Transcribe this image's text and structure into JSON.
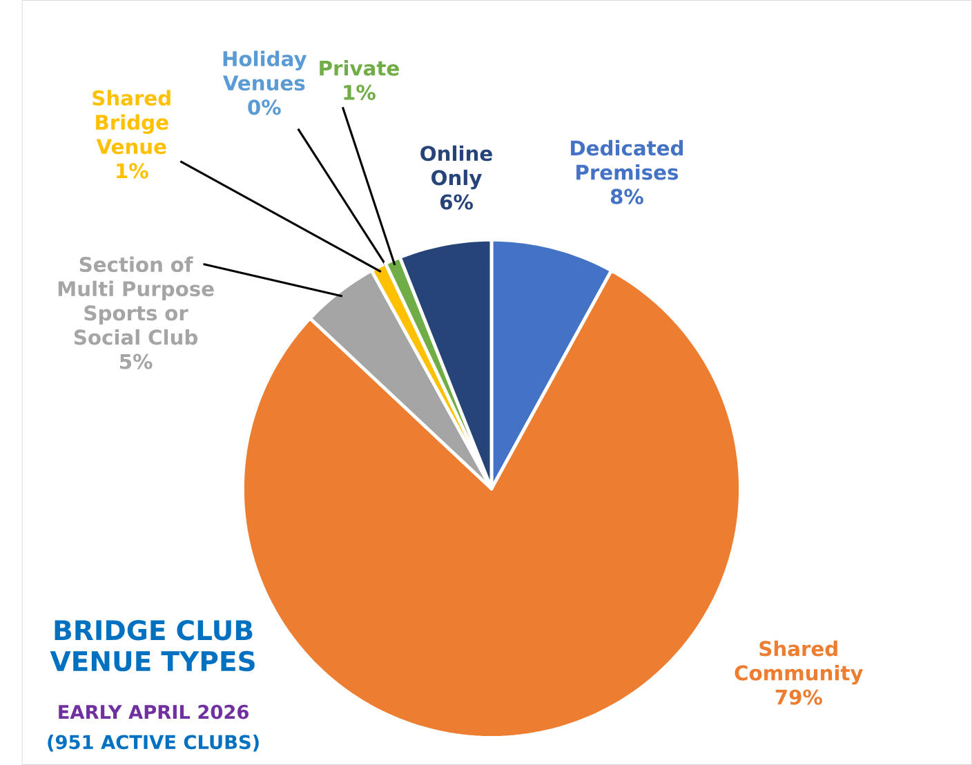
{
  "chart_data": {
    "type": "pie",
    "title": "BRIDGE CLUB VENUE TYPES",
    "subtitle": "EARLY APRIL 2026",
    "annotations": [
      "(951 ACTIVE CLUBS)"
    ],
    "categories": [
      "Dedicated Premises",
      "Shared Community",
      "Section of Multi Purpose Sports or Social Club",
      "Shared Bridge Venue",
      "Holiday Venues",
      "Private",
      "Online Only"
    ],
    "values": [
      8,
      79,
      5,
      1,
      0,
      1,
      6
    ],
    "value_labels": [
      "8%",
      "79%",
      "5%",
      "1%",
      "0%",
      "1%",
      "6%"
    ],
    "colors": [
      "#4472c4",
      "#ed7d31",
      "#a5a5a5",
      "#ffc000",
      "#5b9bd5",
      "#70ad47",
      "#264478"
    ]
  }
}
